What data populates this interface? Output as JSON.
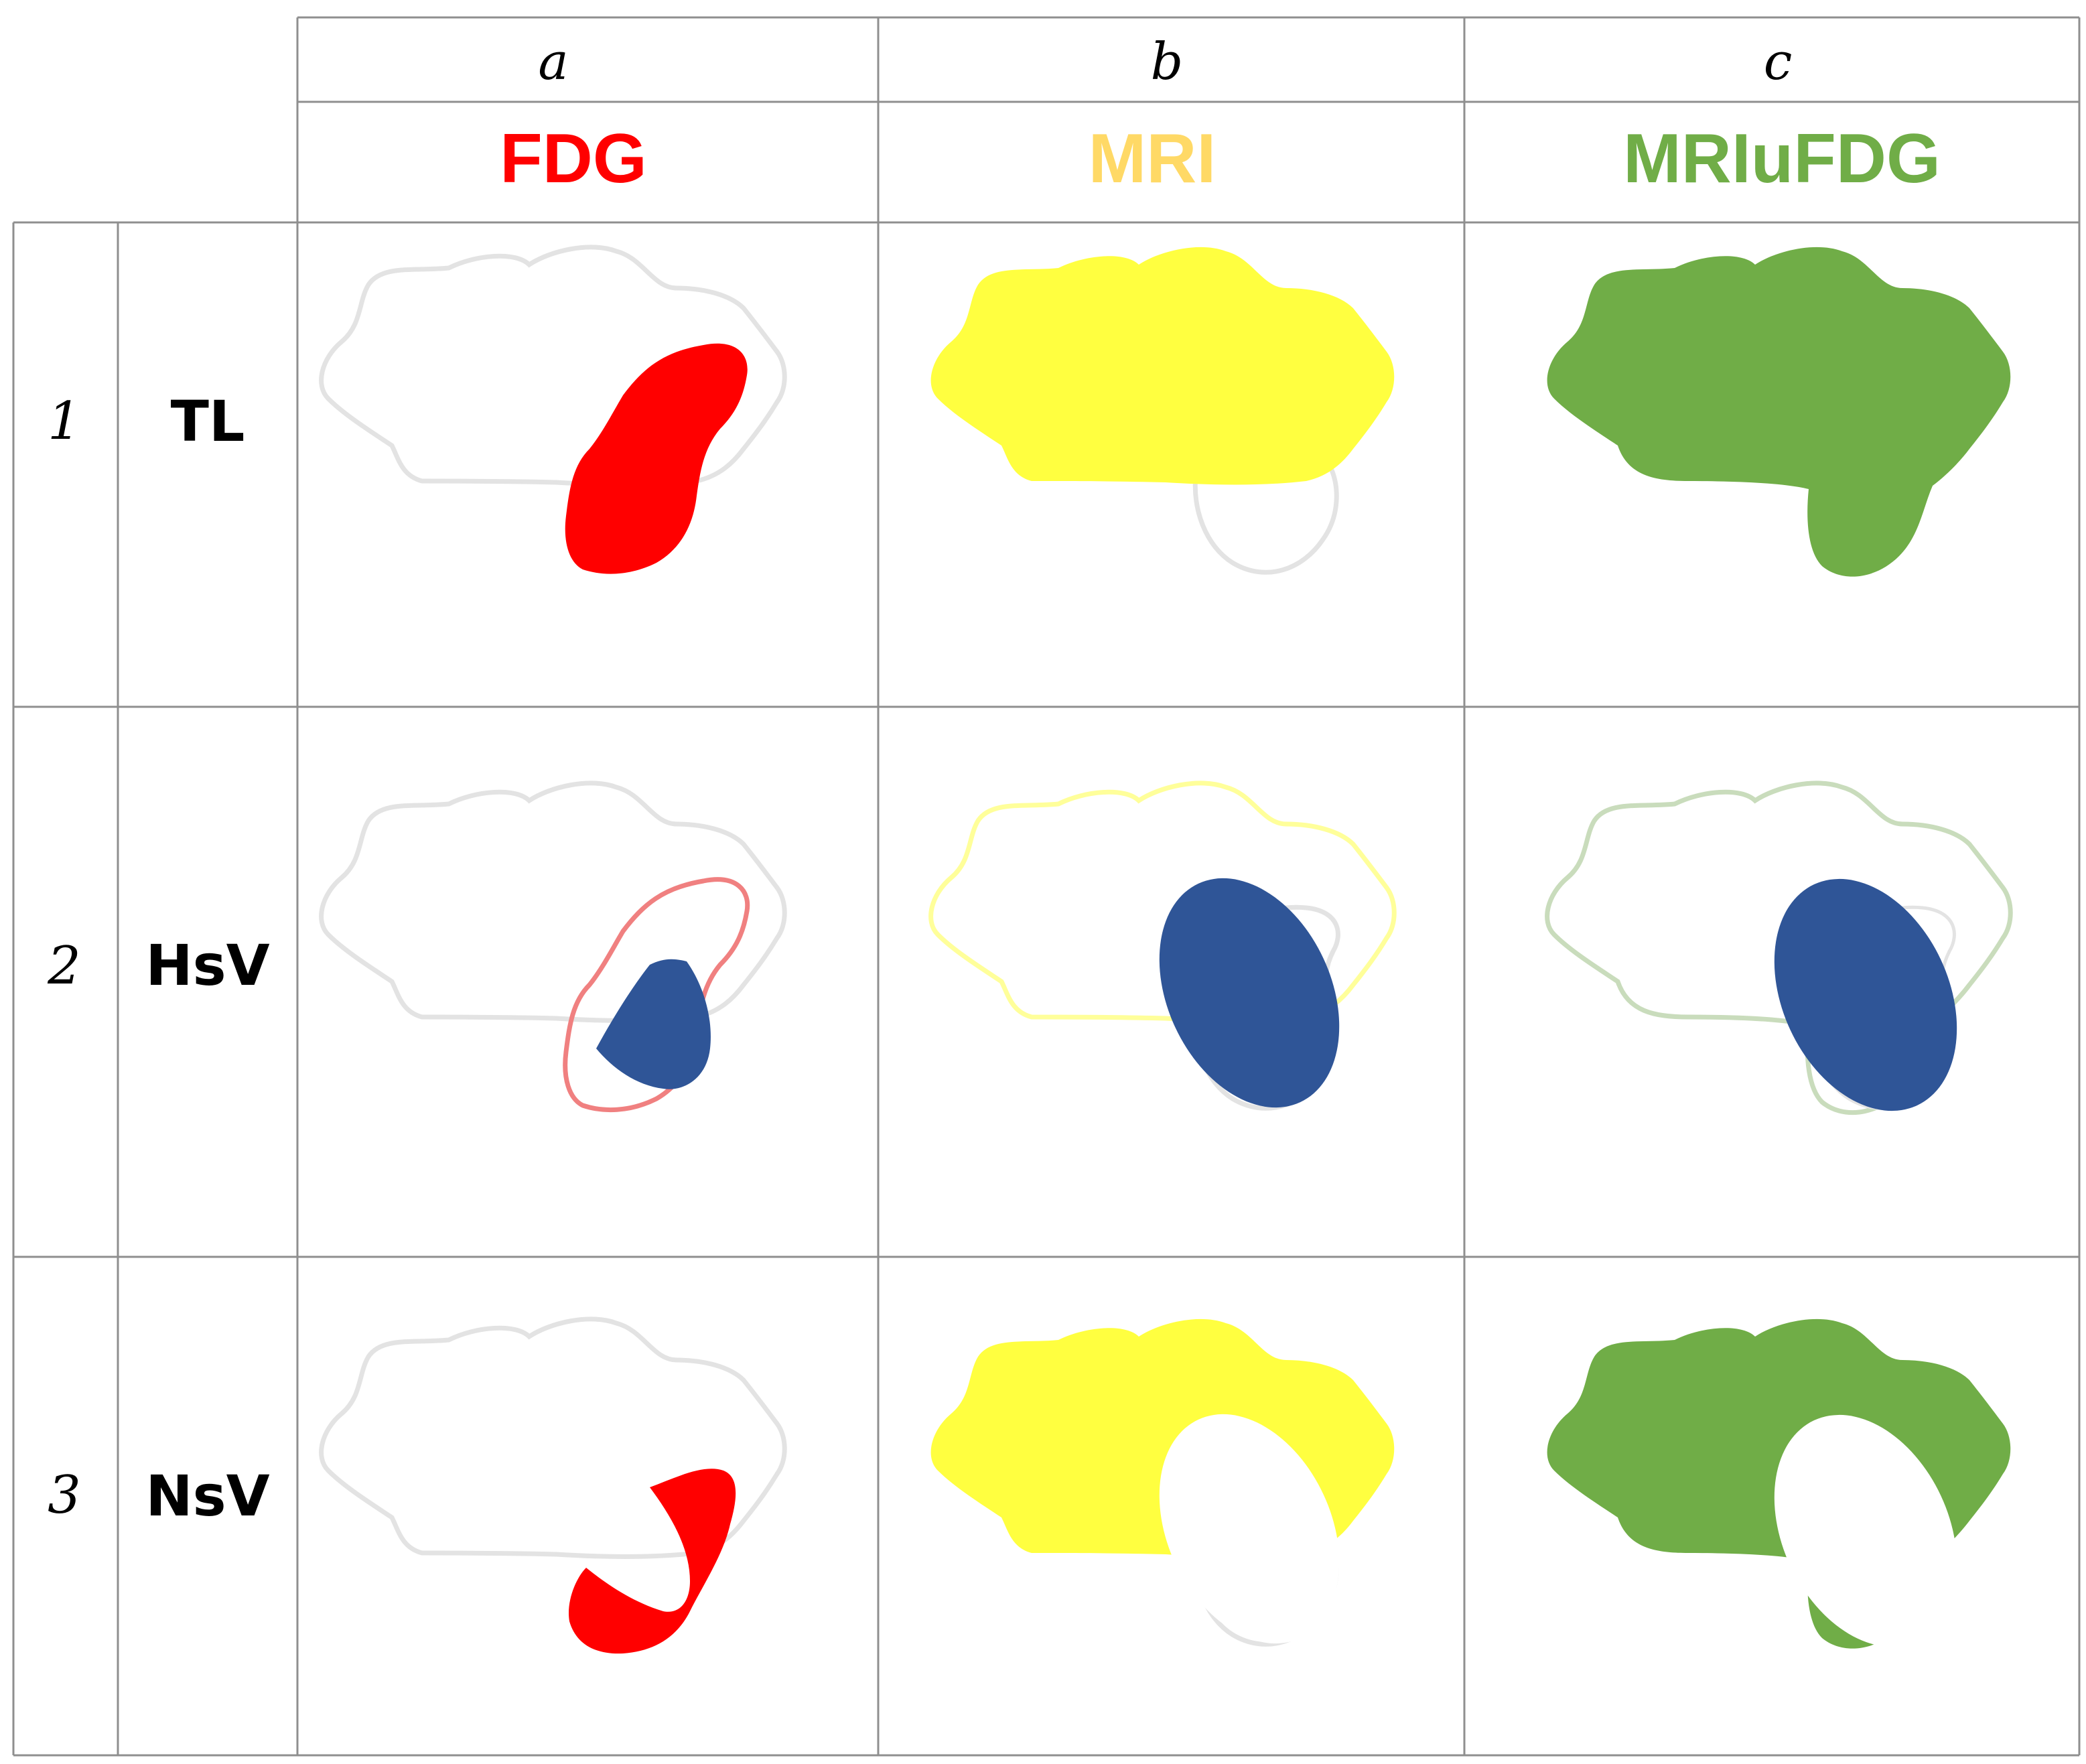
{
  "columns": [
    {
      "letter": "a",
      "modality": "FDG",
      "color": "#ff0000"
    },
    {
      "letter": "b",
      "modality": "MRI",
      "color": "#ffd966"
    },
    {
      "letter": "c",
      "modality": "MRIuFDG",
      "color": "#70ad47"
    }
  ],
  "rows": [
    {
      "number": "1",
      "label": "TL"
    },
    {
      "number": "2",
      "label": "HsV"
    },
    {
      "number": "3",
      "label": "NsV"
    }
  ],
  "colors": {
    "fdg_fill": "#ff0000",
    "mri_fill": "#ffff40",
    "union_fill": "#70ad47",
    "lesion_fill": "#2f5597",
    "outline_gray": "#e3e3e3",
    "grid_line": "#8f8f8f"
  }
}
